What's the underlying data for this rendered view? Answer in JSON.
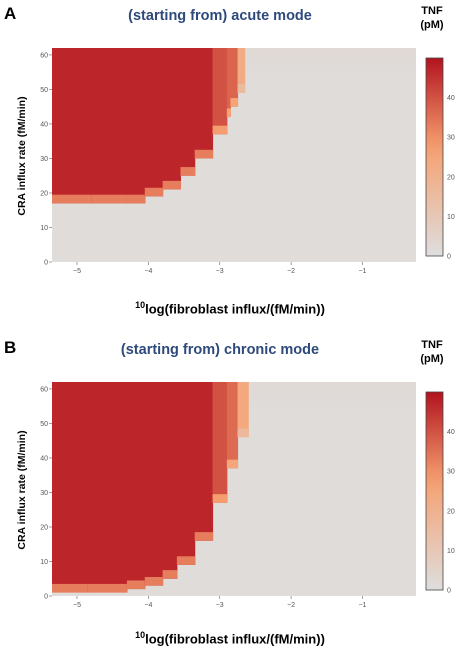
{
  "panels": [
    {
      "letter": "A",
      "title": "(starting from) acute mode"
    },
    {
      "letter": "B",
      "title": "(starting from) chronic mode"
    }
  ],
  "colorbar": {
    "title_line1": "TNF",
    "title_line2": "(pM)",
    "ticks": [
      0,
      10,
      20,
      30,
      40
    ],
    "range": [
      0,
      50
    ]
  },
  "colors": {
    "low": "#dedede",
    "mid": "#f6a070",
    "high": "#b3131f"
  },
  "chart_data": [
    {
      "type": "heatmap",
      "title": "(starting from) acute mode",
      "xlabel_sup": "10",
      "xlabel": "log(fibroblast  influx/(fM/min))",
      "ylabel": "CRA influx rate (fM/min)",
      "xlim": [
        -5.35,
        -0.25
      ],
      "ylim": [
        0,
        62
      ],
      "xticks": [
        -5,
        -4,
        -3,
        -2,
        -1
      ],
      "yticks": [
        0,
        10,
        20,
        30,
        40,
        50,
        60
      ],
      "boundary_x": [
        -5.35,
        -4.8,
        -4.3,
        -4.05,
        -3.8,
        -3.55,
        -3.35,
        -3.1,
        -2.9,
        -2.85,
        -2.75
      ],
      "boundary_y_min": [
        17,
        17,
        17,
        19,
        21,
        25,
        30,
        37,
        42,
        45,
        49
      ],
      "high_region_x_max": -2.65,
      "transition_columns": [
        {
          "x": -3.15,
          "value": 40
        },
        {
          "x": -2.95,
          "value": 37
        },
        {
          "x": -2.75,
          "value": 22
        }
      ],
      "value_high": 47,
      "value_low": 1
    },
    {
      "type": "heatmap",
      "title": "(starting from) chronic mode",
      "xlabel_sup": "10",
      "xlabel": "log(fibroblast  influx/(fM/min))",
      "ylabel": "CRA influx rate (fM/min)",
      "xlim": [
        -5.35,
        -0.25
      ],
      "ylim": [
        0,
        62
      ],
      "xticks": [
        -5,
        -4,
        -3,
        -2,
        -1
      ],
      "yticks": [
        0,
        10,
        20,
        30,
        40,
        50,
        60
      ],
      "boundary_x": [
        -5.35,
        -4.85,
        -4.3,
        -4.05,
        -3.8,
        -3.6,
        -3.35,
        -3.1,
        -2.9,
        -2.75
      ],
      "boundary_y_min": [
        1,
        1,
        2,
        3,
        5,
        9,
        16,
        27,
        37,
        46
      ],
      "high_region_x_max": -2.6,
      "transition_columns": [
        {
          "x": -3.15,
          "value": 40
        },
        {
          "x": -2.95,
          "value": 36
        },
        {
          "x": -2.75,
          "value": 24
        }
      ],
      "value_high": 47,
      "value_low": 1
    }
  ]
}
